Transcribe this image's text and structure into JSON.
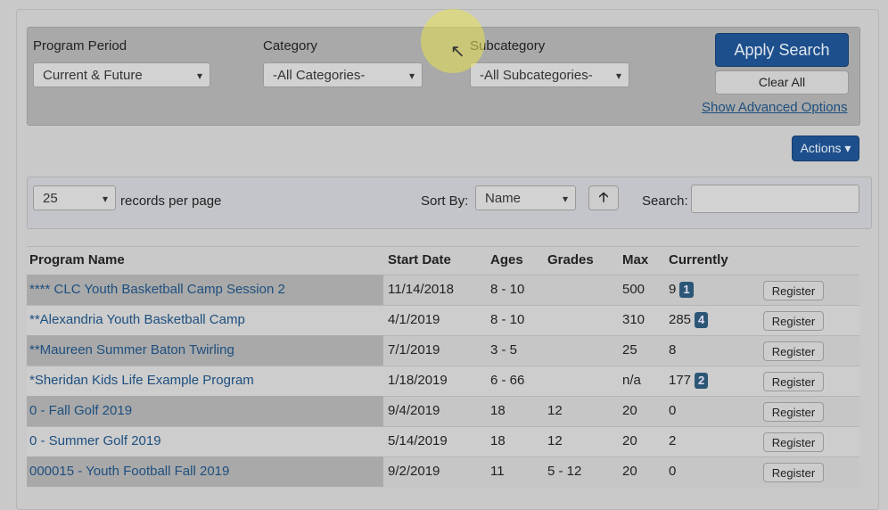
{
  "filters": {
    "program_period": {
      "label": "Program Period",
      "value": "Current & Future"
    },
    "category": {
      "label": "Category",
      "value": "-All Categories-"
    },
    "subcategory": {
      "label": "Subcategory",
      "value": "-All Subcategories-"
    },
    "apply_button": "Apply Search",
    "clear_button": "Clear All",
    "advanced_link": "Show Advanced Options"
  },
  "actions_button": "Actions",
  "toolbar": {
    "page_size": "25",
    "page_size_label": "records per page",
    "sort_label": "Sort By:",
    "sort_value": "Name",
    "search_label": "Search:"
  },
  "table": {
    "headers": [
      "Program Name",
      "Start Date",
      "Ages",
      "Grades",
      "Max",
      "Currently"
    ],
    "register_label": "Register",
    "rows": [
      {
        "name": "**** CLC Youth Basketball Camp Session 2",
        "start": "11/14/2018",
        "ages": "8 - 10",
        "max": "500",
        "currently": "9",
        "badge": "1"
      },
      {
        "name": "**Alexandria Youth Basketball Camp",
        "start": "4/1/2019",
        "ages": "8 - 10",
        "max": "310",
        "currently": "285",
        "badge": "4"
      },
      {
        "name": "**Maureen Summer Baton Twirling",
        "start": "7/1/2019",
        "ages": "3 - 5",
        "max": "25",
        "currently": "8"
      },
      {
        "name": "*Sheridan Kids Life Example Program",
        "start": "1/18/2019",
        "ages": "6 - 66",
        "max": "n/a",
        "currently": "177",
        "badge": "2"
      },
      {
        "name": "0 - Fall Golf 2019",
        "start": "9/4/2019",
        "ages": "18",
        "grades": "12",
        "max": "20",
        "currently": "0"
      },
      {
        "name": "0 - Summer Golf 2019",
        "start": "5/14/2019",
        "ages": "18",
        "grades": "12",
        "max": "20",
        "currently": "2"
      },
      {
        "name": "000015 - Youth Football Fall 2019",
        "start": "9/2/2019",
        "ages": "11",
        "grades": "5 - 12",
        "max": "20",
        "currently": "0"
      }
    ]
  }
}
